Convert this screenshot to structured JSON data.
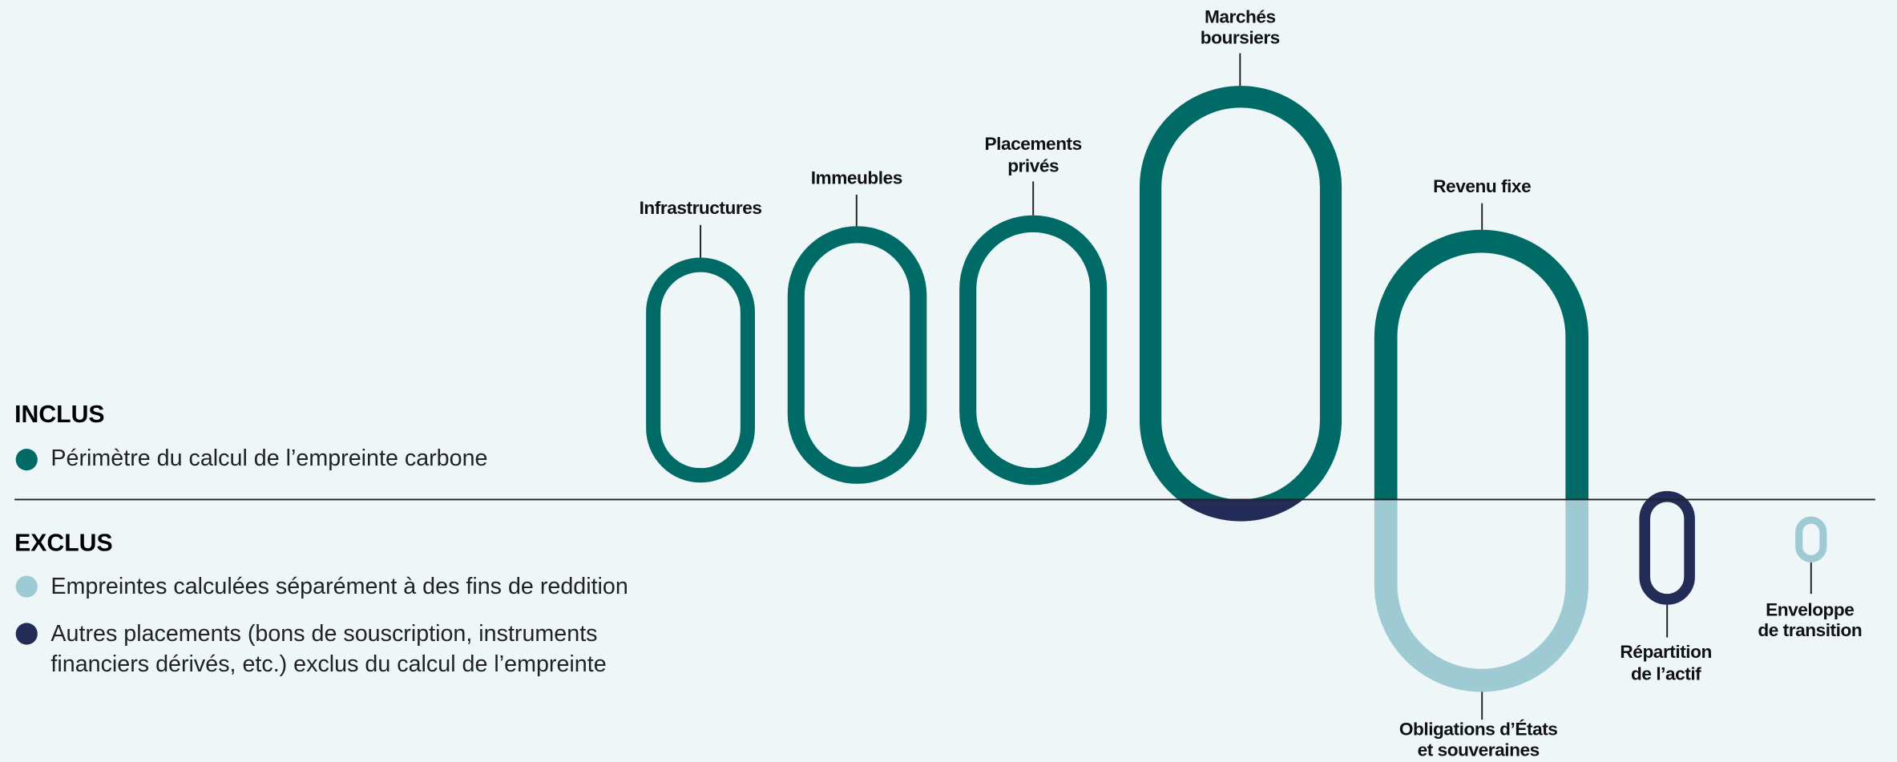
{
  "legend": {
    "included": {
      "title": "INCLUS",
      "items": [
        "Périmètre du calcul de l’empreinte carbone"
      ]
    },
    "excluded": {
      "title": "EXCLUS",
      "items": [
        [
          "Empreintes calculées séparément à des fins de reddition"
        ],
        [
          "Autres placements (bons de souscription, instruments",
          "financiers dérivés, etc.) exclus du calcul de l’empreinte"
        ]
      ]
    }
  },
  "nodes": [
    {
      "label": [
        "Infrastructures"
      ]
    },
    {
      "label": [
        "Immeubles"
      ]
    },
    {
      "label": [
        "Placements",
        "privés"
      ]
    },
    {
      "label": [
        "Marchés",
        "boursiers"
      ]
    },
    {
      "label": [
        "Revenu fixe"
      ]
    },
    {
      "label": [
        "Obligations d’États",
        "et souveraines"
      ]
    },
    {
      "label": [
        "Répartition",
        "de l’actif"
      ]
    },
    {
      "label": [
        "Enveloppe",
        "de transition"
      ]
    }
  ]
}
